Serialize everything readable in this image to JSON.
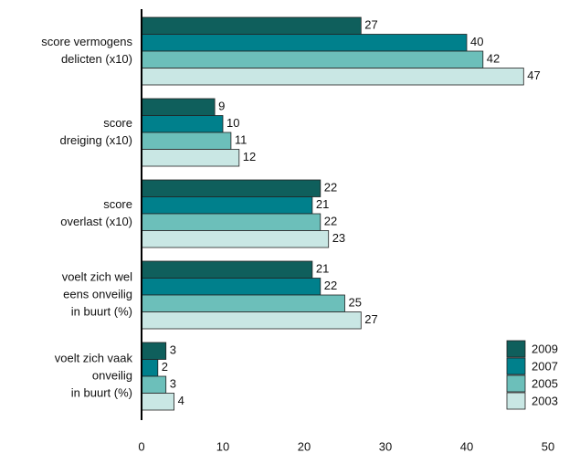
{
  "chart_data": {
    "type": "bar",
    "orientation": "horizontal",
    "categories": [
      [
        "score vermogens",
        "delicten (x10)"
      ],
      [
        "score",
        "dreiging (x10)"
      ],
      [
        "score",
        "overlast (x10)"
      ],
      [
        "voelt zich wel",
        "eens onveilig",
        "in buurt (%)"
      ],
      [
        "voelt zich vaak",
        "onveilig",
        "in buurt (%)"
      ]
    ],
    "series": [
      {
        "name": "2009",
        "color": "#0f5f5c",
        "values": [
          27,
          9,
          22,
          21,
          3
        ]
      },
      {
        "name": "2007",
        "color": "#00808c",
        "values": [
          40,
          10,
          21,
          22,
          2
        ]
      },
      {
        "name": "2005",
        "color": "#6cbfba",
        "values": [
          42,
          11,
          22,
          25,
          3
        ]
      },
      {
        "name": "2003",
        "color": "#c9e7e4",
        "values": [
          47,
          12,
          23,
          27,
          4
        ]
      }
    ],
    "xlim": [
      0,
      50
    ],
    "xticks": [
      0,
      10,
      20,
      30,
      40,
      50
    ],
    "legend": "lower right"
  }
}
